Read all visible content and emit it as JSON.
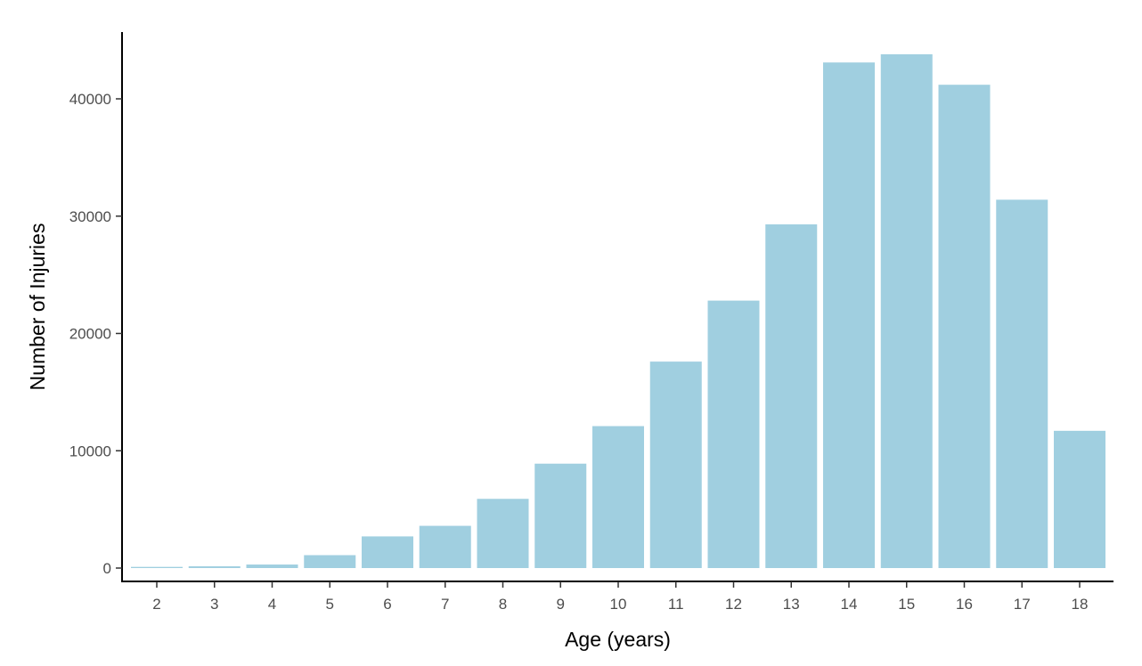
{
  "chart_data": {
    "type": "bar",
    "title": "",
    "xlabel": "Age (years)",
    "ylabel": "Number of Injuries",
    "categories": [
      "2",
      "3",
      "4",
      "5",
      "6",
      "7",
      "8",
      "9",
      "10",
      "11",
      "12",
      "13",
      "14",
      "15",
      "16",
      "17",
      "18"
    ],
    "values": [
      100,
      150,
      300,
      1100,
      2700,
      3600,
      5900,
      8900,
      12100,
      17600,
      22800,
      29300,
      43100,
      43800,
      41200,
      31400,
      11700
    ],
    "yticks": [
      "0",
      "10000",
      "20000",
      "30000",
      "40000"
    ],
    "ylim": [
      0,
      45000
    ],
    "grid": false,
    "legend": "none",
    "bar_color": "#a0cfe0",
    "axis_color": "#000000",
    "tick_label_color": "#4d4d4d"
  }
}
